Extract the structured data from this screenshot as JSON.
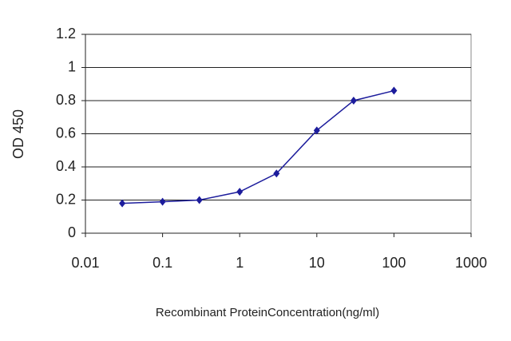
{
  "chart_data": {
    "type": "line",
    "xlabel": "Recombinant ProteinConcentration(ng/ml)",
    "ylabel": "OD 450",
    "xscale": "log",
    "grid": true,
    "xlim": [
      0.01,
      1000
    ],
    "xticks": [
      0.01,
      0.1,
      1,
      10,
      100,
      1000
    ],
    "ylim": [
      0,
      1.2
    ],
    "yticks": [
      0,
      0.2,
      0.4,
      0.6,
      0.8,
      1,
      1.2
    ],
    "series": [
      {
        "color": "#1c1c9c",
        "x": [
          0.03,
          0.1,
          0.3,
          1,
          3,
          10,
          30,
          100
        ],
        "values": [
          0.18,
          0.19,
          0.2,
          0.25,
          0.36,
          0.62,
          0.8,
          0.86
        ]
      }
    ]
  }
}
